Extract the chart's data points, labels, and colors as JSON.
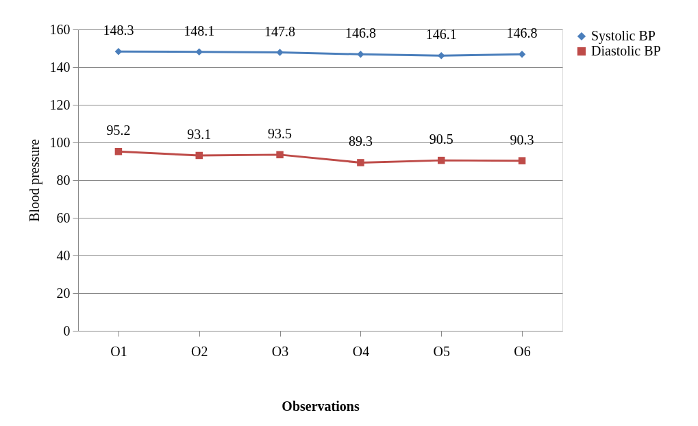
{
  "chart_data": {
    "type": "line",
    "xlabel": "Observations",
    "ylabel": "Blood pressure",
    "categories": [
      "O1",
      "O2",
      "O3",
      "O4",
      "O5",
      "O6"
    ],
    "series": [
      {
        "name": "Systolic BP",
        "color": "#4a7ebb",
        "marker": "diamond",
        "values": [
          148.3,
          148.1,
          147.8,
          146.8,
          146.1,
          146.8
        ]
      },
      {
        "name": "Diastolic BP",
        "color": "#be4b48",
        "marker": "square",
        "values": [
          95.2,
          93.1,
          93.5,
          89.3,
          90.5,
          90.3
        ]
      }
    ],
    "ylim": [
      0,
      160
    ],
    "yticks": [
      0,
      20,
      40,
      60,
      80,
      100,
      120,
      140,
      160
    ],
    "grid": "y",
    "legend": "right",
    "data_labels": true,
    "line_style": "solid"
  }
}
